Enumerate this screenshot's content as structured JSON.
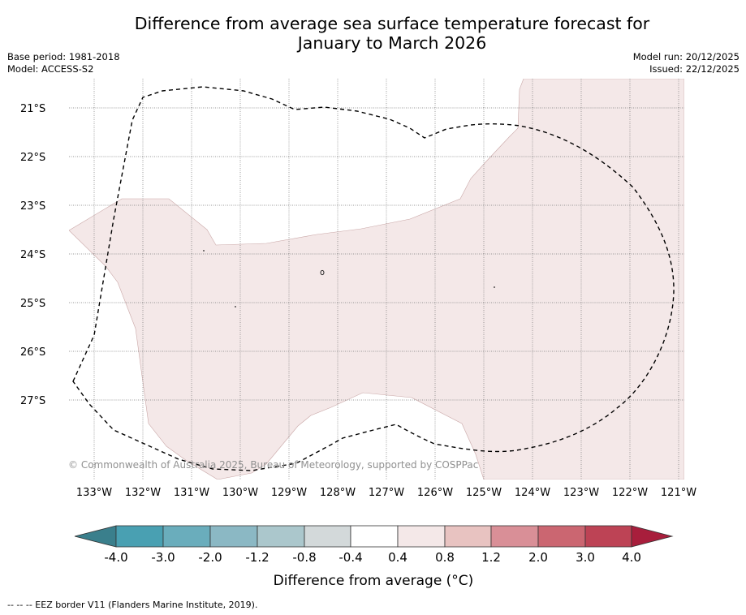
{
  "title_line1": "Difference from average sea surface temperature forecast for",
  "title_line2": "January to March 2026",
  "meta": {
    "base_period": "Base period: 1981-2018",
    "model": "Model: ACCESS-S2",
    "model_run": "Model run: 20/12/2025",
    "issued": "Issued: 22/12/2025"
  },
  "map": {
    "lat_labels": [
      "21°S",
      "22°S",
      "23°S",
      "24°S",
      "25°S",
      "26°S",
      "27°S"
    ],
    "lon_labels": [
      "133°W",
      "132°W",
      "131°W",
      "130°W",
      "129°W",
      "128°W",
      "127°W",
      "126°W",
      "125°W",
      "124°W",
      "123°W",
      "122°W",
      "121°W"
    ],
    "copyright": "© Commonwealth of Australia 2025, Bureau of Meteorology, supported by COSPPac",
    "anomaly_band": "0.4 to 0.8",
    "anomaly_color": "#f4e8e8"
  },
  "colorbar": {
    "label": "Difference from average (°C)",
    "ticks": [
      "-4.0",
      "-3.0",
      "-2.0",
      "-1.2",
      "-0.8",
      "-0.4",
      "0.4",
      "0.8",
      "1.2",
      "2.0",
      "3.0",
      "4.0"
    ],
    "colors": [
      "#3a7f8c",
      "#49a0b2",
      "#6aadbc",
      "#8bb8c4",
      "#abc7cc",
      "#d3d9da",
      "#ffffff",
      "#f4e8e8",
      "#e8c3c1",
      "#d98f97",
      "#cb6671",
      "#bd4355",
      "#a81e3c"
    ]
  },
  "footnote": "--  --  -- EEZ border V11 (Flanders Marine Institute, 2019)."
}
